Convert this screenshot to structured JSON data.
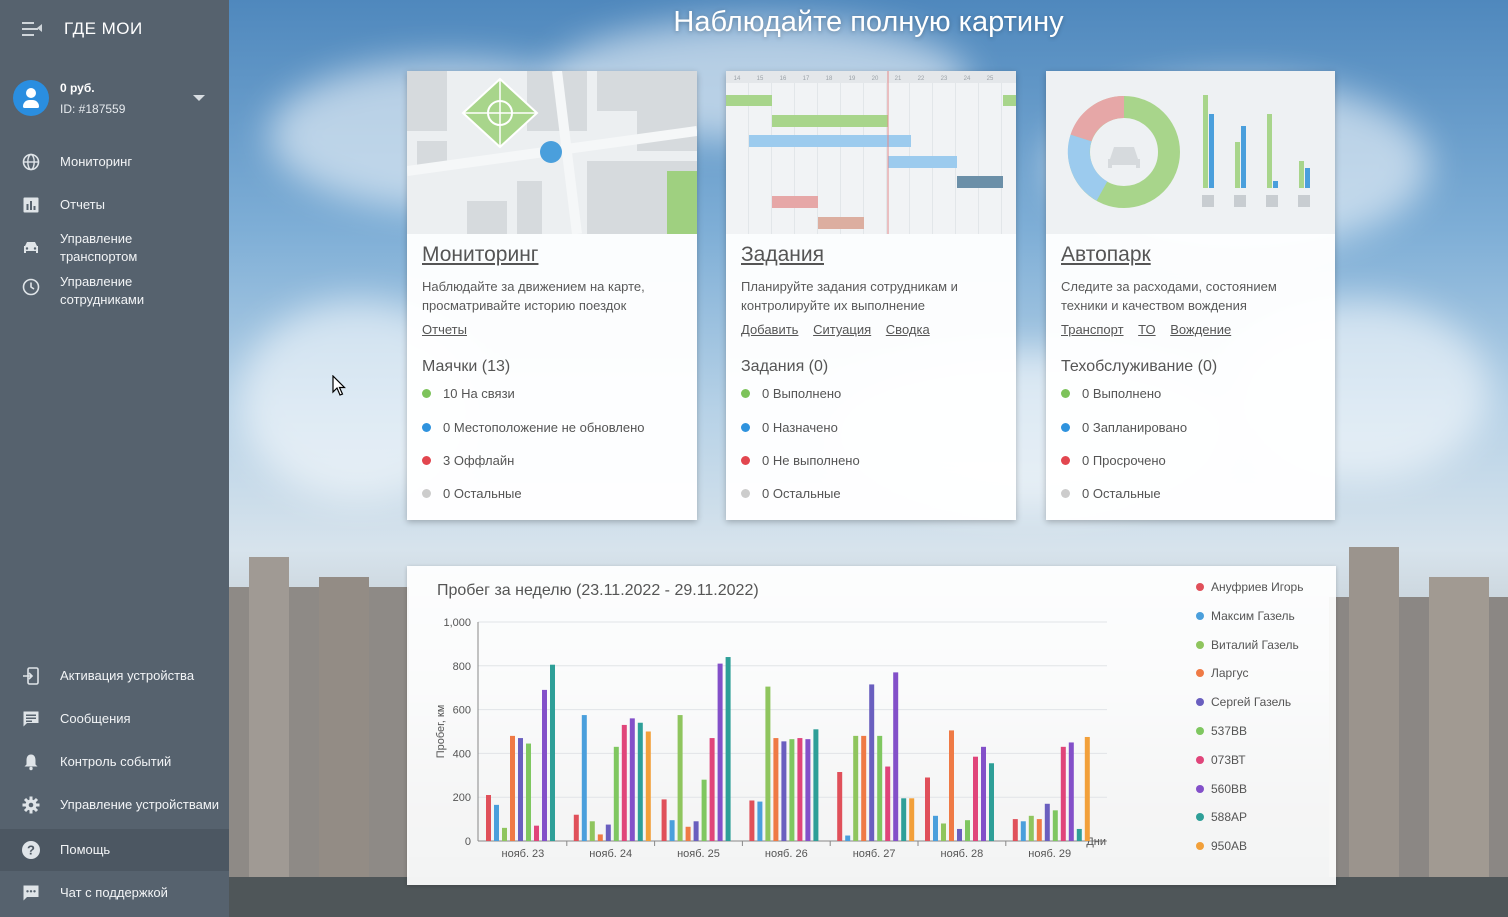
{
  "sidebar": {
    "logo": "ГДЕ МОИ",
    "account": {
      "balance": "0 руб.",
      "id": "ID: #187559"
    },
    "nav": [
      {
        "label": "Мониторинг",
        "icon": "globe-icon"
      },
      {
        "label": "Отчеты",
        "icon": "bar-chart-icon"
      },
      {
        "label": "Управление транспортом",
        "icon": "car-icon"
      },
      {
        "label": "Управление сотрудниками",
        "icon": "clock-icon"
      }
    ],
    "bottom_nav": [
      {
        "label": "Активация устройства",
        "icon": "device-activation-icon"
      },
      {
        "label": "Сообщения",
        "icon": "message-icon"
      },
      {
        "label": "Контроль событий",
        "icon": "bell-icon"
      },
      {
        "label": "Управление устройствами",
        "icon": "gear-icon"
      },
      {
        "label": "Помощь",
        "icon": "help-icon"
      },
      {
        "label": "Чат с поддержкой",
        "icon": "chat-icon"
      }
    ]
  },
  "hero": {
    "title": "Наблюдайте полную картину"
  },
  "cards": [
    {
      "title": "Мониторинг",
      "desc": "Наблюдайте за движением на карте, просматривайте историю поездок",
      "links": [
        "Отчеты"
      ],
      "stat_title": "Маячки (13)",
      "stats": [
        {
          "text": "10 На связи",
          "color": "#7dc35b"
        },
        {
          "text": "0 Местоположение не обновлено",
          "color": "#2f93de"
        },
        {
          "text": "3 Оффлайн",
          "color": "#e2464f"
        },
        {
          "text": "0 Остальные",
          "color": "#cccccc"
        }
      ]
    },
    {
      "title": "Задания",
      "desc": "Планируйте задания сотрудникам и контролируйте их выполнение",
      "links": [
        "Добавить",
        "Ситуация",
        "Сводка"
      ],
      "stat_title": "Задания (0)",
      "stats": [
        {
          "text": "0 Выполнено",
          "color": "#7dc35b"
        },
        {
          "text": "0 Назначено",
          "color": "#2f93de"
        },
        {
          "text": "0 Не выполнено",
          "color": "#e2464f"
        },
        {
          "text": "0 Остальные",
          "color": "#cccccc"
        }
      ]
    },
    {
      "title": "Автопарк",
      "desc": "Следите за расходами, состоянием техники и качеством вождения",
      "links": [
        "Транспорт",
        "ТО",
        "Вождение"
      ],
      "stat_title": "Техобслуживание (0)",
      "stats": [
        {
          "text": "0 Выполнено",
          "color": "#7dc35b"
        },
        {
          "text": "0 Запланировано",
          "color": "#2f93de"
        },
        {
          "text": "0 Просрочено",
          "color": "#e2464f"
        },
        {
          "text": "0 Остальные",
          "color": "#cccccc"
        }
      ]
    }
  ],
  "gantt_days": [
    "14",
    "15",
    "16",
    "17",
    "18",
    "19",
    "20",
    "21",
    "22",
    "23",
    "24",
    "25"
  ],
  "chart_data": {
    "type": "bar",
    "title": "Пробег за неделю (23.11.2022 - 29.11.2022)",
    "xlabel": "Дни",
    "ylabel": "Пробег, км",
    "ylim": [
      0,
      1000
    ],
    "yticks": [
      "0",
      "200",
      "400",
      "600",
      "800",
      "1,000"
    ],
    "categories": [
      "нояб. 23",
      "нояб. 24",
      "нояб. 25",
      "нояб. 26",
      "нояб. 27",
      "нояб. 28",
      "нояб. 29"
    ],
    "series": [
      {
        "name": "Ануфриев Игорь",
        "color": "#e0505a",
        "values": [
          210,
          120,
          190,
          185,
          315,
          290,
          100
        ]
      },
      {
        "name": "Максим Газель",
        "color": "#4a9fdc",
        "values": [
          165,
          575,
          95,
          180,
          25,
          115,
          90
        ]
      },
      {
        "name": "Виталий Газель",
        "color": "#8fc55e",
        "values": [
          60,
          90,
          575,
          705,
          480,
          80,
          115
        ]
      },
      {
        "name": "Ларгус",
        "color": "#ef7a45",
        "values": [
          480,
          30,
          65,
          470,
          480,
          505,
          100
        ]
      },
      {
        "name": "Сергей Газель",
        "color": "#6a5fbf",
        "values": [
          470,
          75,
          90,
          455,
          715,
          55,
          170
        ]
      },
      {
        "name": "537ВВ",
        "color": "#7fc760",
        "values": [
          445,
          430,
          280,
          465,
          480,
          95,
          140
        ]
      },
      {
        "name": "073ВТ",
        "color": "#e0457a",
        "values": [
          70,
          530,
          470,
          470,
          340,
          385,
          430
        ]
      },
      {
        "name": "560ВВ",
        "color": "#8350c9",
        "values": [
          690,
          560,
          810,
          465,
          770,
          430,
          450
        ]
      },
      {
        "name": "588АР",
        "color": "#2e9f98",
        "values": [
          805,
          540,
          840,
          510,
          195,
          355,
          55
        ]
      },
      {
        "name": "950АВ",
        "color": "#f2a03a",
        "values": [
          0,
          500,
          0,
          0,
          195,
          0,
          475
        ]
      }
    ],
    "legend_position": "right",
    "grid": true
  }
}
